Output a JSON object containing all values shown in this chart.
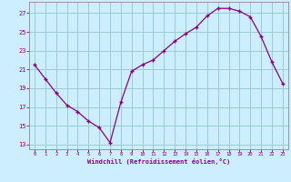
{
  "x": [
    0,
    1,
    2,
    3,
    4,
    5,
    6,
    7,
    8,
    9,
    10,
    11,
    12,
    13,
    14,
    15,
    16,
    17,
    18,
    19,
    20,
    21,
    22,
    23
  ],
  "y": [
    21.5,
    20.0,
    18.5,
    17.2,
    16.5,
    15.5,
    14.8,
    13.2,
    17.5,
    20.8,
    21.5,
    22.0,
    23.0,
    24.0,
    24.8,
    25.5,
    26.7,
    27.5,
    27.5,
    27.2,
    26.6,
    24.5,
    21.8,
    19.5
  ],
  "line_color": "#880088",
  "marker": "+",
  "bg_color": "#cceeff",
  "grid_color": "#99cccc",
  "xlabel": "Windchill (Refroidissement éolien,°C)",
  "xlabel_color": "#880088",
  "tick_color": "#880088",
  "xlim": [
    -0.5,
    23.5
  ],
  "ylim": [
    12.5,
    28.2
  ],
  "yticks": [
    13,
    15,
    17,
    19,
    21,
    23,
    25,
    27
  ],
  "xticks": [
    0,
    1,
    2,
    3,
    4,
    5,
    6,
    7,
    8,
    9,
    10,
    11,
    12,
    13,
    14,
    15,
    16,
    17,
    18,
    19,
    20,
    21,
    22,
    23
  ],
  "spine_color": "#888888"
}
